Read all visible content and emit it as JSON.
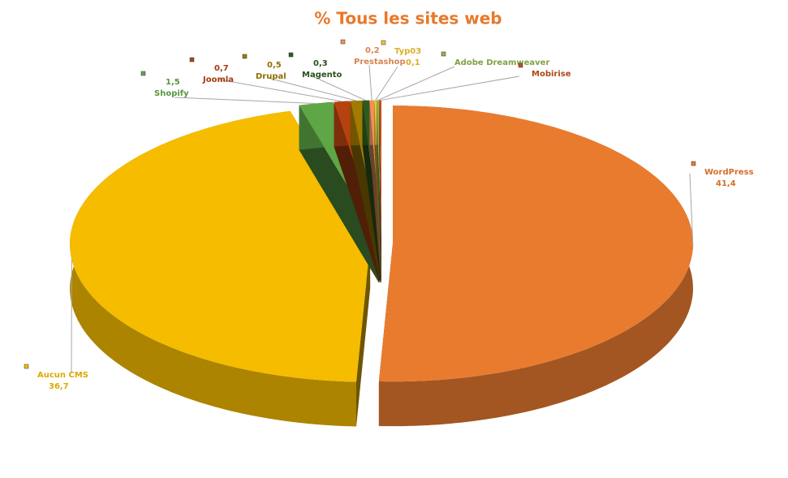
{
  "chart_data": {
    "type": "pie3d",
    "title": "% Tous les sites web",
    "categories": [
      "WordPress",
      "Aucun CMS",
      "Shopify",
      "Joomla",
      "Drupal",
      "Magento",
      "Prestashop",
      "Typ03",
      "Adobe Dreamweaver",
      "Mobirise"
    ],
    "values": [
      41.4,
      36.7,
      1.5,
      0.7,
      0.5,
      0.3,
      0.2,
      0.1,
      0.1,
      0.1
    ],
    "value_labels": [
      "41,4",
      "36,7",
      "1,5",
      "0,7",
      "0,5",
      "0,3",
      "0,2",
      "0,1",
      null,
      null
    ],
    "colors": [
      "#e97b2f",
      "#f5bc00",
      "#5ea646",
      "#b5420f",
      "#a07b00",
      "#2e5a1e",
      "#f0915a",
      "#f2c230",
      "#8eb34a",
      "#c0501a"
    ],
    "title_color": "#e8792b"
  }
}
